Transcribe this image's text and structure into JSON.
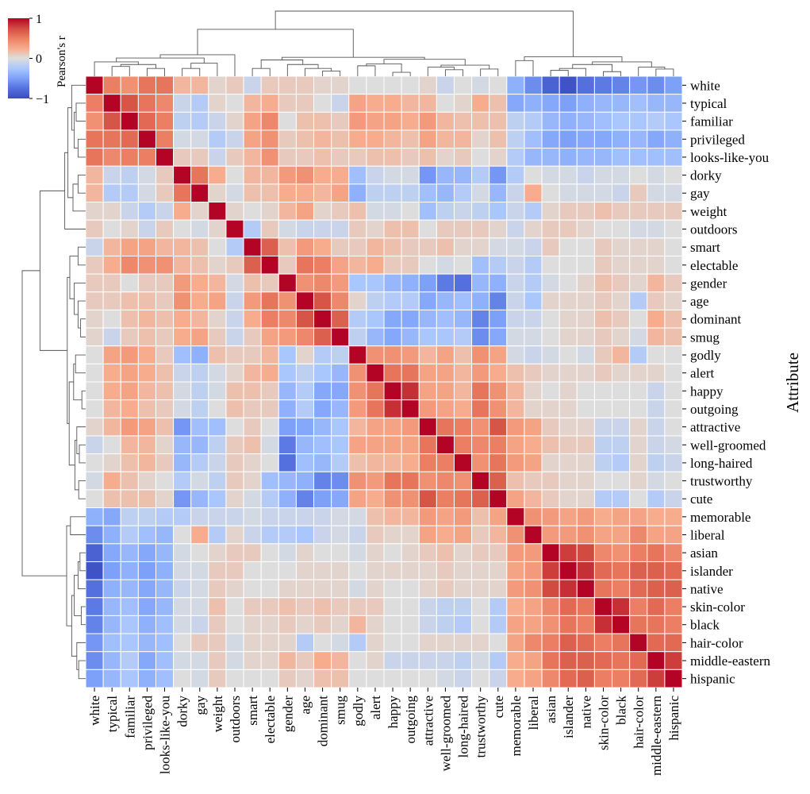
{
  "chart_data": {
    "type": "heatmap",
    "variant": "clustermap",
    "labels": [
      "white",
      "typical",
      "familiar",
      "privileged",
      "looks-like-you",
      "dorky",
      "gay",
      "weight",
      "outdoors",
      "smart",
      "electable",
      "gender",
      "age",
      "dominant",
      "smug",
      "godly",
      "alert",
      "happy",
      "outgoing",
      "attractive",
      "well-groomed",
      "long-haired",
      "trustworthy",
      "cute",
      "memorable",
      "liberal",
      "asian",
      "islander",
      "native",
      "skin-color",
      "black",
      "hair-color",
      "middle-eastern",
      "hispanic"
    ],
    "ylabel": "Attribute",
    "colorbar": {
      "label": "Pearson's r",
      "min": -1,
      "max": 1,
      "ticks": [
        "1",
        "0",
        "−1"
      ],
      "colormap": "coolwarm"
    },
    "values": [
      [
        1.0,
        0.5,
        0.4,
        0.55,
        0.55,
        0.2,
        0.2,
        0.05,
        0.1,
        -0.1,
        0.1,
        0.1,
        0.1,
        0.05,
        0.05,
        0.0,
        0.0,
        0.0,
        0.0,
        0.05,
        -0.1,
        0.0,
        -0.05,
        0.0,
        -0.4,
        -0.6,
        -0.85,
        -0.95,
        -0.75,
        -0.7,
        -0.65,
        -0.55,
        -0.6,
        -0.5
      ],
      [
        0.5,
        1.0,
        0.7,
        0.55,
        0.45,
        -0.1,
        -0.2,
        0.05,
        0.0,
        0.2,
        0.25,
        0.1,
        0.1,
        0.0,
        -0.1,
        0.3,
        0.25,
        0.25,
        0.2,
        0.2,
        0.0,
        0.05,
        0.25,
        0.15,
        -0.45,
        -0.4,
        -0.45,
        -0.5,
        -0.4,
        -0.35,
        -0.35,
        -0.3,
        -0.35,
        -0.35
      ],
      [
        0.4,
        0.7,
        1.0,
        0.6,
        0.5,
        -0.15,
        -0.2,
        -0.1,
        0.05,
        0.3,
        0.45,
        0.0,
        0.15,
        0.15,
        0.1,
        0.35,
        0.3,
        0.3,
        0.25,
        0.35,
        0.2,
        0.15,
        0.15,
        0.15,
        -0.15,
        -0.2,
        -0.35,
        -0.4,
        -0.35,
        -0.3,
        -0.25,
        -0.25,
        -0.2,
        -0.25
      ],
      [
        0.55,
        0.55,
        0.6,
        1.0,
        0.5,
        -0.05,
        -0.05,
        -0.2,
        -0.1,
        0.3,
        0.4,
        0.1,
        0.15,
        0.2,
        0.15,
        0.25,
        0.25,
        0.2,
        0.15,
        0.3,
        0.2,
        0.2,
        0.05,
        0.15,
        -0.15,
        -0.3,
        -0.45,
        -0.5,
        -0.45,
        -0.45,
        -0.4,
        -0.35,
        -0.45,
        -0.4
      ],
      [
        0.55,
        0.45,
        0.5,
        0.5,
        1.0,
        0.1,
        0.1,
        -0.1,
        0.1,
        0.2,
        0.4,
        0.1,
        0.1,
        0.15,
        0.1,
        0.1,
        0.15,
        0.15,
        0.1,
        0.15,
        0.05,
        0.1,
        0.0,
        0.05,
        -0.2,
        -0.35,
        -0.35,
        -0.4,
        -0.35,
        -0.35,
        -0.3,
        -0.3,
        -0.3,
        -0.3
      ],
      [
        0.2,
        -0.1,
        -0.15,
        -0.05,
        0.1,
        1.0,
        0.55,
        0.25,
        0.0,
        0.2,
        0.2,
        0.35,
        0.4,
        0.25,
        0.25,
        -0.3,
        -0.1,
        -0.05,
        -0.05,
        -0.55,
        -0.35,
        -0.35,
        -0.2,
        -0.55,
        -0.2,
        0.0,
        -0.05,
        -0.05,
        -0.1,
        -0.05,
        -0.05,
        0.0,
        -0.05,
        0.0
      ],
      [
        0.2,
        -0.2,
        -0.2,
        -0.05,
        0.1,
        0.55,
        1.0,
        0.05,
        -0.05,
        0.15,
        0.15,
        0.25,
        0.25,
        0.2,
        0.3,
        -0.4,
        -0.15,
        -0.15,
        -0.15,
        -0.3,
        -0.35,
        -0.2,
        -0.05,
        -0.35,
        -0.1,
        0.25,
        0.0,
        -0.05,
        -0.05,
        -0.05,
        -0.1,
        0.1,
        -0.05,
        -0.05
      ],
      [
        0.05,
        0.05,
        -0.1,
        -0.2,
        -0.1,
        0.25,
        0.05,
        1.0,
        0.05,
        0.0,
        0.05,
        0.2,
        0.3,
        0.05,
        0.1,
        0.15,
        -0.05,
        -0.05,
        0.0,
        -0.3,
        -0.15,
        -0.1,
        -0.15,
        -0.25,
        -0.1,
        -0.2,
        0.05,
        0.1,
        0.1,
        0.15,
        0.1,
        0.1,
        0.1,
        0.1
      ],
      [
        0.1,
        0.0,
        0.05,
        -0.1,
        0.1,
        0.0,
        -0.05,
        0.05,
        1.0,
        -0.2,
        0.1,
        -0.05,
        -0.1,
        -0.1,
        -0.1,
        0.1,
        0.05,
        0.15,
        0.15,
        0.0,
        0.1,
        0.1,
        0.1,
        0.05,
        -0.1,
        0.05,
        0.1,
        0.1,
        0.05,
        0.0,
        0.0,
        -0.05,
        -0.05,
        0.0
      ],
      [
        -0.1,
        0.2,
        0.3,
        0.3,
        0.2,
        0.2,
        0.15,
        0.0,
        -0.2,
        1.0,
        0.65,
        0.15,
        0.35,
        0.25,
        0.1,
        0.1,
        0.2,
        0.15,
        0.1,
        0.1,
        0.15,
        0.05,
        0.05,
        -0.05,
        -0.05,
        -0.1,
        0.1,
        0.0,
        0.0,
        0.1,
        0.05,
        0.05,
        0.05,
        0.0
      ],
      [
        0.1,
        0.25,
        0.45,
        0.4,
        0.4,
        0.2,
        0.15,
        0.05,
        0.1,
        0.65,
        1.0,
        0.1,
        0.55,
        0.5,
        0.3,
        0.2,
        0.25,
        0.1,
        0.1,
        0.0,
        -0.05,
        0.0,
        -0.3,
        -0.2,
        -0.1,
        -0.2,
        0.0,
        0.0,
        0.0,
        0.1,
        0.05,
        0.05,
        0.05,
        0.0
      ],
      [
        0.1,
        0.1,
        0.0,
        0.1,
        0.1,
        0.35,
        0.25,
        0.2,
        -0.05,
        0.15,
        0.1,
        1.0,
        0.4,
        0.45,
        0.35,
        -0.25,
        -0.25,
        -0.35,
        -0.4,
        -0.5,
        -0.7,
        -0.75,
        -0.35,
        -0.4,
        -0.1,
        -0.2,
        -0.05,
        0.0,
        0.05,
        0.15,
        0.1,
        0.05,
        0.2,
        0.1
      ],
      [
        0.1,
        0.1,
        0.15,
        0.15,
        0.1,
        0.4,
        0.25,
        0.3,
        -0.1,
        0.35,
        0.55,
        0.4,
        1.0,
        0.7,
        0.45,
        0.05,
        -0.15,
        -0.2,
        -0.2,
        -0.45,
        -0.35,
        -0.3,
        -0.4,
        -0.65,
        -0.1,
        -0.25,
        0.05,
        0.05,
        0.05,
        0.1,
        0.05,
        -0.2,
        0.1,
        0.05
      ],
      [
        0.05,
        0.0,
        0.15,
        0.2,
        0.15,
        0.25,
        0.2,
        0.05,
        -0.1,
        0.25,
        0.5,
        0.45,
        0.7,
        1.0,
        0.65,
        -0.2,
        -0.25,
        -0.45,
        -0.45,
        -0.35,
        -0.3,
        -0.35,
        -0.65,
        -0.5,
        -0.1,
        -0.1,
        0.0,
        0.05,
        0.05,
        0.15,
        0.1,
        0.0,
        0.25,
        0.15
      ],
      [
        0.05,
        -0.1,
        0.1,
        0.15,
        0.1,
        0.25,
        0.3,
        0.1,
        -0.1,
        0.1,
        0.3,
        0.35,
        0.45,
        0.65,
        1.0,
        -0.15,
        -0.35,
        -0.45,
        -0.35,
        -0.25,
        -0.25,
        -0.2,
        -0.6,
        -0.45,
        -0.05,
        -0.05,
        0.0,
        0.05,
        0.05,
        0.1,
        0.05,
        -0.05,
        0.2,
        0.15
      ],
      [
        0.0,
        0.3,
        0.35,
        0.25,
        0.1,
        -0.3,
        -0.4,
        0.15,
        0.1,
        0.1,
        0.2,
        -0.25,
        0.05,
        -0.2,
        -0.15,
        1.0,
        0.4,
        0.4,
        0.35,
        0.2,
        0.3,
        0.15,
        0.4,
        0.3,
        -0.05,
        -0.1,
        -0.05,
        0.0,
        -0.05,
        0.1,
        0.2,
        -0.2,
        0.0,
        0.0
      ],
      [
        0.0,
        0.25,
        0.3,
        0.25,
        0.15,
        -0.1,
        -0.15,
        -0.05,
        0.05,
        0.2,
        0.25,
        -0.25,
        -0.15,
        -0.25,
        -0.35,
        0.4,
        1.0,
        0.55,
        0.55,
        0.3,
        0.3,
        0.2,
        0.35,
        0.25,
        0.15,
        0.1,
        0.05,
        0.05,
        0.05,
        0.1,
        0.05,
        0.05,
        0.05,
        0.0
      ],
      [
        0.0,
        0.25,
        0.3,
        0.2,
        0.15,
        -0.05,
        -0.15,
        -0.05,
        0.15,
        0.15,
        0.1,
        -0.35,
        -0.2,
        -0.45,
        -0.45,
        0.4,
        0.55,
        1.0,
        0.85,
        0.3,
        0.3,
        0.2,
        0.55,
        0.4,
        0.2,
        0.05,
        0.0,
        0.05,
        0.0,
        0.0,
        0.0,
        0.0,
        -0.1,
        0.0
      ],
      [
        0.0,
        0.2,
        0.25,
        0.15,
        0.1,
        -0.05,
        -0.15,
        0.0,
        0.15,
        0.1,
        0.1,
        -0.4,
        -0.2,
        -0.45,
        -0.35,
        0.35,
        0.55,
        0.85,
        1.0,
        0.35,
        0.3,
        0.25,
        0.55,
        0.4,
        0.2,
        0.05,
        0.05,
        0.05,
        0.0,
        0.0,
        0.0,
        0.0,
        -0.1,
        0.0
      ],
      [
        0.05,
        0.2,
        0.35,
        0.3,
        0.15,
        -0.55,
        -0.3,
        -0.3,
        0.0,
        0.1,
        0.0,
        -0.5,
        -0.45,
        -0.35,
        -0.25,
        0.2,
        0.3,
        0.3,
        0.35,
        1.0,
        0.55,
        0.5,
        0.4,
        0.7,
        0.35,
        0.3,
        0.1,
        0.05,
        0.05,
        -0.1,
        -0.1,
        0.05,
        -0.1,
        0.0
      ],
      [
        -0.1,
        0.0,
        0.2,
        0.2,
        0.05,
        -0.35,
        -0.35,
        -0.15,
        0.1,
        0.15,
        -0.05,
        -0.7,
        -0.35,
        -0.3,
        -0.25,
        0.3,
        0.3,
        0.3,
        0.3,
        0.55,
        1.0,
        0.5,
        0.45,
        0.5,
        0.3,
        0.25,
        0.15,
        0.1,
        0.1,
        -0.15,
        -0.15,
        0.05,
        -0.1,
        -0.05
      ],
      [
        0.0,
        0.05,
        0.15,
        0.2,
        0.1,
        -0.35,
        -0.2,
        -0.1,
        0.1,
        0.05,
        0.0,
        -0.75,
        -0.3,
        -0.35,
        -0.2,
        0.15,
        0.2,
        0.2,
        0.25,
        0.5,
        0.5,
        1.0,
        0.4,
        0.55,
        0.35,
        0.3,
        0.05,
        0.05,
        0.05,
        -0.15,
        -0.2,
        0.05,
        -0.15,
        -0.1
      ],
      [
        -0.05,
        0.25,
        0.15,
        0.05,
        0.0,
        -0.2,
        -0.05,
        -0.15,
        0.1,
        0.05,
        -0.3,
        -0.35,
        -0.4,
        -0.65,
        -0.6,
        0.4,
        0.35,
        0.55,
        0.55,
        0.4,
        0.45,
        0.4,
        1.0,
        0.65,
        0.15,
        0.1,
        0.1,
        0.05,
        0.05,
        0.0,
        0.0,
        0.05,
        -0.05,
        0.0
      ],
      [
        0.0,
        0.15,
        0.15,
        0.15,
        0.05,
        -0.55,
        -0.35,
        -0.25,
        0.05,
        -0.05,
        -0.2,
        -0.4,
        -0.65,
        -0.5,
        -0.45,
        0.3,
        0.25,
        0.4,
        0.4,
        0.7,
        0.5,
        0.55,
        0.65,
        1.0,
        0.3,
        0.2,
        0.1,
        0.05,
        0.05,
        -0.2,
        -0.2,
        0.0,
        -0.2,
        -0.1
      ],
      [
        -0.4,
        -0.45,
        -0.15,
        -0.15,
        -0.2,
        -0.2,
        -0.1,
        -0.1,
        -0.1,
        -0.05,
        -0.1,
        -0.1,
        -0.1,
        -0.1,
        -0.05,
        -0.05,
        0.15,
        0.2,
        0.2,
        0.35,
        0.3,
        0.35,
        0.15,
        0.3,
        1.0,
        0.4,
        0.35,
        0.3,
        0.35,
        0.25,
        0.3,
        0.3,
        0.25,
        0.25
      ],
      [
        -0.6,
        -0.4,
        -0.2,
        -0.3,
        -0.35,
        0.0,
        0.25,
        -0.2,
        0.05,
        -0.1,
        -0.2,
        -0.2,
        -0.25,
        -0.1,
        -0.05,
        -0.1,
        0.1,
        0.05,
        0.05,
        0.3,
        0.25,
        0.3,
        0.1,
        0.2,
        0.4,
        1.0,
        0.35,
        0.35,
        0.4,
        0.3,
        0.3,
        0.45,
        0.3,
        0.3
      ],
      [
        -0.85,
        -0.45,
        -0.35,
        -0.45,
        -0.35,
        -0.05,
        0.0,
        0.05,
        0.1,
        0.1,
        0.0,
        -0.05,
        0.05,
        0.0,
        0.0,
        -0.05,
        0.05,
        0.0,
        0.05,
        0.1,
        0.15,
        0.05,
        0.1,
        0.1,
        0.35,
        0.35,
        1.0,
        0.8,
        0.75,
        0.45,
        0.4,
        0.5,
        0.55,
        0.45
      ],
      [
        -0.95,
        -0.5,
        -0.4,
        -0.5,
        -0.4,
        -0.05,
        -0.05,
        0.1,
        0.1,
        0.0,
        0.0,
        0.0,
        0.05,
        0.05,
        0.05,
        0.0,
        0.05,
        0.05,
        0.05,
        0.05,
        0.1,
        0.05,
        0.05,
        0.05,
        0.3,
        0.35,
        0.8,
        1.0,
        0.85,
        0.6,
        0.55,
        0.65,
        0.65,
        0.6
      ],
      [
        -0.75,
        -0.4,
        -0.35,
        -0.45,
        -0.35,
        -0.1,
        -0.05,
        0.1,
        0.05,
        0.0,
        0.0,
        0.05,
        0.05,
        0.05,
        0.05,
        -0.05,
        0.05,
        0.0,
        0.0,
        0.05,
        0.1,
        0.05,
        0.05,
        0.05,
        0.35,
        0.4,
        0.75,
        0.85,
        1.0,
        0.55,
        0.5,
        0.6,
        0.65,
        0.65
      ],
      [
        -0.7,
        -0.35,
        -0.3,
        -0.45,
        -0.35,
        -0.05,
        -0.05,
        0.15,
        0.0,
        0.1,
        0.1,
        0.15,
        0.1,
        0.15,
        0.1,
        0.1,
        0.1,
        0.0,
        0.0,
        -0.1,
        -0.15,
        -0.15,
        0.0,
        -0.2,
        0.25,
        0.3,
        0.45,
        0.6,
        0.55,
        1.0,
        0.85,
        0.5,
        0.6,
        0.5
      ],
      [
        -0.65,
        -0.35,
        -0.25,
        -0.4,
        -0.3,
        -0.05,
        -0.1,
        0.1,
        0.0,
        0.05,
        0.05,
        0.1,
        0.05,
        0.1,
        0.05,
        0.2,
        0.05,
        0.0,
        0.0,
        -0.1,
        -0.15,
        -0.2,
        0.0,
        -0.2,
        0.3,
        0.3,
        0.4,
        0.55,
        0.5,
        0.85,
        1.0,
        0.55,
        0.55,
        0.5
      ],
      [
        -0.55,
        -0.3,
        -0.25,
        -0.35,
        -0.3,
        0.0,
        0.1,
        0.1,
        -0.05,
        0.05,
        0.05,
        0.05,
        -0.2,
        0.0,
        -0.05,
        -0.2,
        0.05,
        0.0,
        0.0,
        0.05,
        0.05,
        0.05,
        0.05,
        0.0,
        0.3,
        0.45,
        0.5,
        0.65,
        0.6,
        0.5,
        0.55,
        1.0,
        0.6,
        0.6
      ],
      [
        -0.6,
        -0.35,
        -0.2,
        -0.45,
        -0.3,
        -0.05,
        -0.05,
        0.1,
        -0.05,
        0.05,
        0.05,
        0.2,
        0.1,
        0.25,
        0.2,
        0.0,
        0.05,
        -0.1,
        -0.1,
        -0.1,
        -0.1,
        -0.15,
        -0.05,
        -0.2,
        0.25,
        0.3,
        0.55,
        0.65,
        0.65,
        0.6,
        0.55,
        0.6,
        1.0,
        0.8
      ],
      [
        -0.5,
        -0.35,
        -0.25,
        -0.4,
        -0.3,
        0.0,
        -0.05,
        0.1,
        0.0,
        0.0,
        0.0,
        0.1,
        0.05,
        0.15,
        0.15,
        0.0,
        0.0,
        0.0,
        0.0,
        0.0,
        -0.05,
        -0.1,
        0.0,
        -0.1,
        0.25,
        0.3,
        0.45,
        0.6,
        0.65,
        0.5,
        0.5,
        0.6,
        0.8,
        1.0
      ]
    ]
  }
}
